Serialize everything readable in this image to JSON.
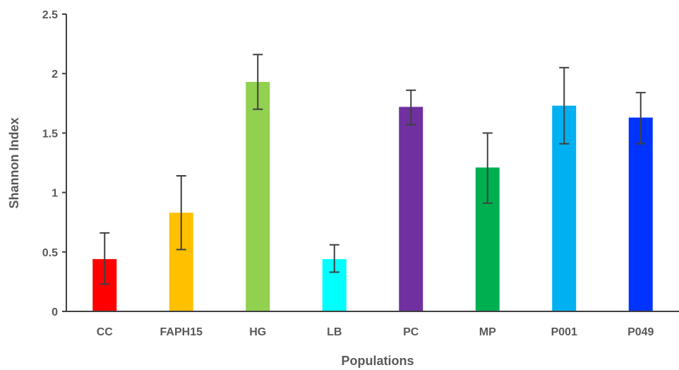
{
  "chart_data": {
    "type": "bar",
    "title": "",
    "xlabel": "Populations",
    "ylabel": "Shannon Index",
    "categories": [
      "CC",
      "FAPH15",
      "HG",
      "LB",
      "PC",
      "MP",
      "P001",
      "P049"
    ],
    "values": [
      0.44,
      0.83,
      1.93,
      0.44,
      1.72,
      1.21,
      1.73,
      1.63
    ],
    "error_low": [
      0.23,
      0.52,
      1.7,
      0.33,
      1.57,
      0.91,
      1.41,
      1.41
    ],
    "error_high": [
      0.66,
      1.14,
      2.16,
      0.56,
      1.86,
      1.5,
      2.05,
      1.84
    ],
    "colors": [
      "#ff0000",
      "#ffc000",
      "#92d050",
      "#00ffff",
      "#7030a0",
      "#00b050",
      "#00b0f0",
      "#0033ff"
    ],
    "error_bar_color": "#404040",
    "axis_color": "#404040",
    "ylim": [
      0,
      2.5
    ],
    "yticks": [
      "0",
      "0.5",
      "1",
      "1.5",
      "2",
      "2.5"
    ],
    "ytick_values": [
      0,
      0.5,
      1,
      1.5,
      2,
      2.5
    ],
    "grid": false,
    "legend": "none"
  }
}
